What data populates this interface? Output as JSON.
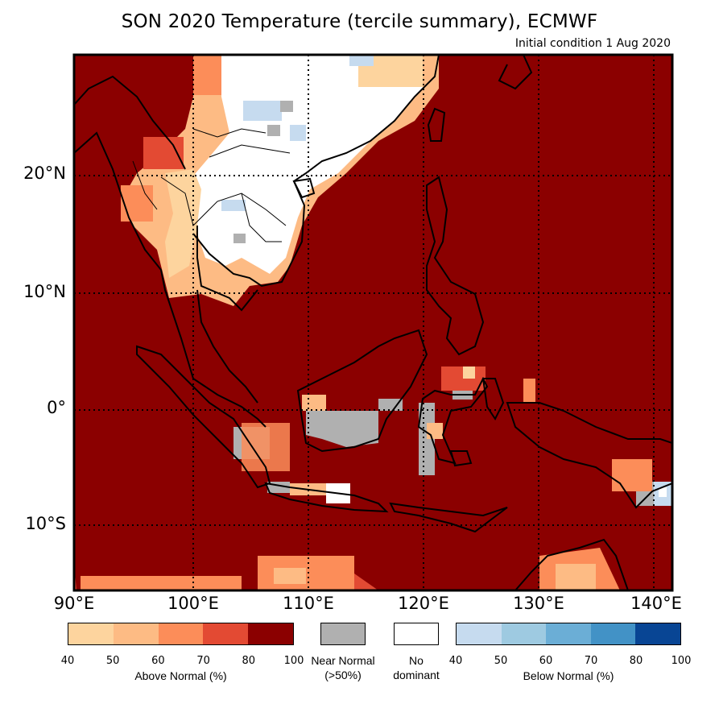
{
  "title": "SON 2020 Temperature (tercile summary), ECMWF",
  "subtitle": "Initial condition 1 Aug 2020",
  "map": {
    "lon_range": [
      90,
      142
    ],
    "lat_range": [
      -15.5,
      30
    ],
    "lat_labels": [
      "20°N",
      "10°N",
      "0°",
      "10°S"
    ],
    "lat_values": [
      20,
      10,
      0,
      -10
    ],
    "lon_labels": [
      "90°E",
      "100°E",
      "110°E",
      "120°E",
      "130°E",
      "140°E"
    ],
    "lon_values": [
      90,
      100,
      110,
      120,
      130,
      140
    ],
    "dominant_color": "#8b0000"
  },
  "legend": {
    "above": {
      "label": "Above Normal (%)",
      "ticks": [
        "40",
        "50",
        "60",
        "70",
        "80",
        "100"
      ],
      "colors": [
        "#fdd49e",
        "#fdbb84",
        "#fc8d59",
        "#e34a33",
        "#8b0000"
      ]
    },
    "near": {
      "label_line1": "Near Normal",
      "label_line2": "(>50%)",
      "color": "#b0b0b0"
    },
    "nodom": {
      "label_line1": "No",
      "label_line2": "dominant",
      "color": "#ffffff"
    },
    "below": {
      "label": "Below Normal (%)",
      "ticks": [
        "40",
        "50",
        "60",
        "70",
        "80",
        "100"
      ],
      "colors": [
        "#c6dbef",
        "#9ecae1",
        "#6baed6",
        "#4292c6",
        "#084594"
      ]
    }
  }
}
